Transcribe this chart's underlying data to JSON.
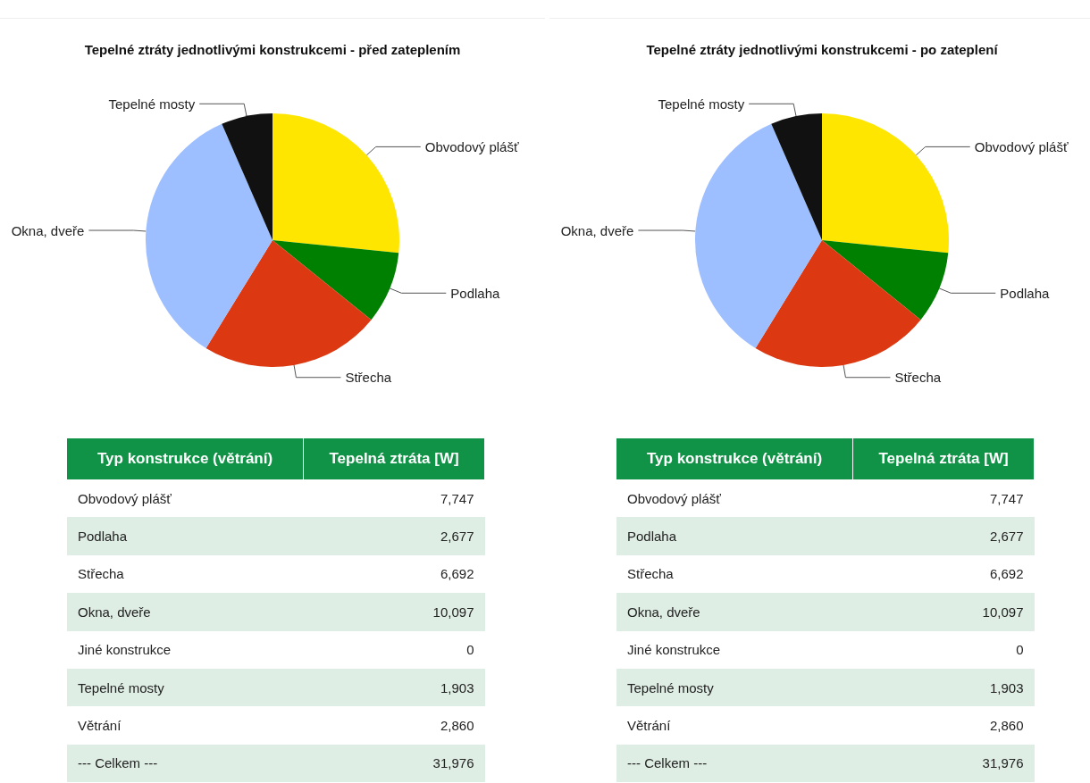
{
  "chart_data": [
    {
      "type": "pie",
      "title": "Tepelné ztráty jednotlivými konstrukcemi - před zateplením",
      "categories": [
        "Obvodový plášť",
        "Podlaha",
        "Střecha",
        "Okna, dveře",
        "Tepelné mosty"
      ],
      "values": [
        26.61,
        9.19,
        22.98,
        34.68,
        6.54
      ],
      "colors": [
        "#ffe600",
        "#008000",
        "#dc3912",
        "#9dbfff",
        "#111111"
      ],
      "legend": false
    },
    {
      "type": "pie",
      "title": "Tepelné ztráty jednotlivými konstrukcemi - po zateplení",
      "categories": [
        "Obvodový plášť",
        "Podlaha",
        "Střecha",
        "Okna, dveře",
        "Tepelné mosty"
      ],
      "values": [
        26.61,
        9.19,
        22.98,
        34.68,
        6.54
      ],
      "colors": [
        "#ffe600",
        "#008000",
        "#dc3912",
        "#9dbfff",
        "#111111"
      ],
      "legend": false
    },
    {
      "type": "other",
      "annotations": [
        "Typ konstrukce (větrání)",
        "Tepelná ztráta [W]",
        "Obvodový plášť",
        "7,747",
        "Podlaha",
        "2,677",
        "Střecha",
        "6,692",
        "Okna, dveře",
        "10,097",
        "Jiné konstrukce",
        "0",
        "Tepelné mosty",
        "1,903",
        "Větrání",
        "2,860",
        "--- Celkem ---",
        "31,976"
      ]
    },
    {
      "type": "other",
      "annotations": [
        "Typ konstrukce (větrání)",
        "Tepelná ztráta [W]",
        "Obvodový plášť",
        "7,747",
        "Podlaha",
        "2,677",
        "Střecha",
        "6,692",
        "Okna, dveře",
        "10,097",
        "Jiné konstrukce",
        "0",
        "Tepelné mosty",
        "1,903",
        "Větrání",
        "2,860",
        "--- Celkem ---",
        "31,976"
      ]
    }
  ]
}
